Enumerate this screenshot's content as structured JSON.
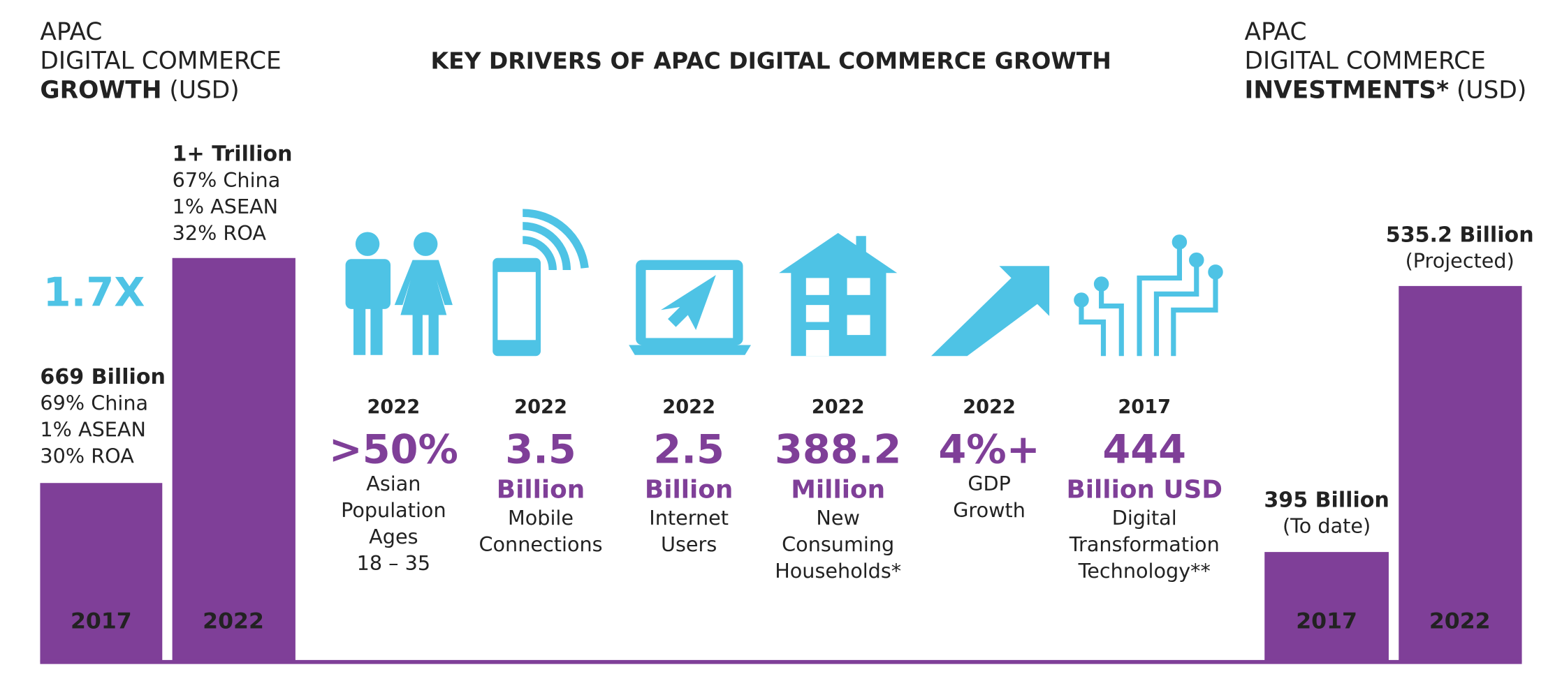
{
  "left": {
    "title_lines": [
      "APAC",
      "DIGITAL COMMERCE"
    ],
    "title_bold": "GROWTH",
    "title_unit": "(USD)",
    "multiplier": "1.7X",
    "bars": [
      {
        "year": "2017",
        "value": "669 Billion",
        "details": [
          "69% China",
          "1% ASEAN",
          "30% ROA"
        ]
      },
      {
        "year": "2022",
        "value": "1+ Trillion",
        "details": [
          "67% China",
          "1% ASEAN",
          "32% ROA"
        ]
      }
    ]
  },
  "center": {
    "title": "KEY DRIVERS OF APAC DIGITAL COMMERCE GROWTH",
    "drivers": [
      {
        "year": "2022",
        "value": ">50%",
        "description": [
          "Asian",
          "Population",
          "Ages",
          "18 – 35"
        ]
      },
      {
        "year": "2022",
        "value": "3.5",
        "unit": "Billion",
        "description": [
          "Mobile",
          "Connections"
        ]
      },
      {
        "year": "2022",
        "value": "2.5",
        "unit": "Billion",
        "description": [
          "Internet",
          "Users"
        ]
      },
      {
        "year": "2022",
        "value": "388.2",
        "unit": "Million",
        "description": [
          "New",
          "Consuming",
          "Households*"
        ]
      },
      {
        "year": "2022",
        "value": "4%+",
        "description": [
          "GDP",
          "Growth"
        ]
      },
      {
        "year": "2017",
        "value": "444",
        "unit": "Billion USD",
        "description": [
          "Digital",
          "Transformation",
          "Technology**"
        ]
      }
    ]
  },
  "right": {
    "title_lines": [
      "APAC",
      "DIGITAL COMMERCE"
    ],
    "title_bold": "INVESTMENTS*",
    "title_unit": "(USD)",
    "bars": [
      {
        "year": "2017",
        "value": "395 Billion",
        "note": "(To date)"
      },
      {
        "year": "2022",
        "value": "535.2 Billion",
        "note": "(Projected)"
      }
    ]
  }
}
